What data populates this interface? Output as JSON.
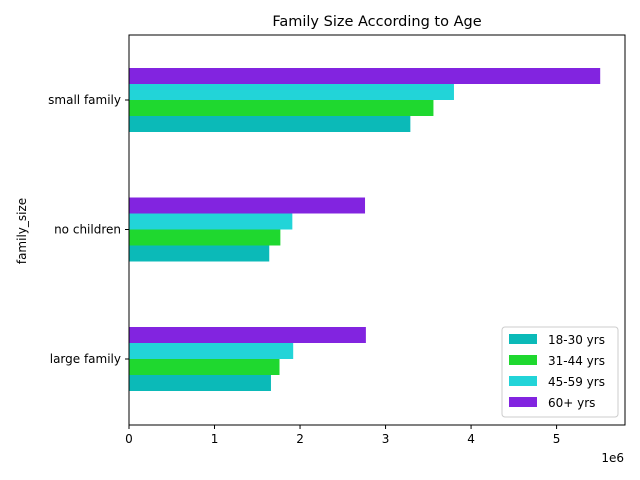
{
  "chart_data": {
    "type": "bar",
    "orientation": "horizontal",
    "title": "Family Size According to Age",
    "xlabel": "",
    "ylabel": "family_size",
    "x_offset_label": "1e6",
    "x_multiplier": 1000000,
    "xlim": [
      0,
      5.8
    ],
    "xticks": [
      0,
      1,
      2,
      3,
      4,
      5
    ],
    "categories": [
      "large family",
      "no children",
      "small family"
    ],
    "series": [
      {
        "name": "18-30 yrs",
        "color": "#0bbab8",
        "values": [
          1.66,
          1.64,
          3.29
        ]
      },
      {
        "name": "31-44 yrs",
        "color": "#1fd82f",
        "values": [
          1.76,
          1.77,
          3.56
        ]
      },
      {
        "name": "45-59 yrs",
        "color": "#22d4d8",
        "values": [
          1.92,
          1.91,
          3.8
        ]
      },
      {
        "name": "60+ yrs",
        "color": "#8224e0",
        "values": [
          2.77,
          2.76,
          5.51
        ]
      }
    ],
    "legend_position": "lower-right",
    "grid": false
  }
}
